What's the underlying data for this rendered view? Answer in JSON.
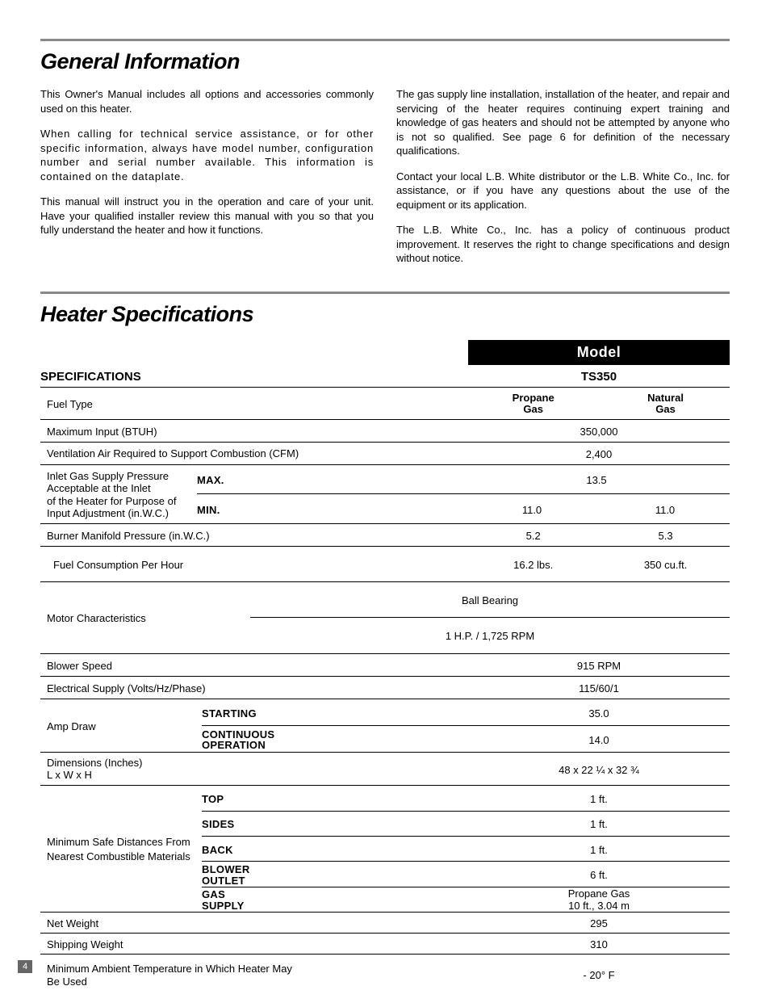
{
  "page_number": "4",
  "section1": {
    "title": "General Information",
    "left_paras": [
      "This Owner's Manual includes all options and accessories commonly used on this heater.",
      "When calling for technical service assistance, or for other specific information, always have model number, configuration number and serial number available.  This information is contained on the dataplate.",
      "This manual will instruct you in the operation and care of your unit. Have your qualified installer review this manual with you so that you fully understand the heater and how it functions."
    ],
    "right_paras": [
      "The gas supply line installation, installation of the heater, and repair and servicing of the heater requires continuing expert training and knowledge of gas heaters and should not be attempted by anyone who is not so qualified.  See page 6 for definition of the necessary qualifications.",
      "Contact your local L.B. White distributor or the L.B. White Co., Inc. for assistance, or if you have any questions about the use of the equipment or its application.",
      "The L.B. White Co., Inc. has a policy of continuous product improvement.  It reserves the right to change specifications and design without notice."
    ]
  },
  "section2": {
    "title": "Heater Specifications",
    "model_label": "Model",
    "specs_label": "Specifications",
    "model_name": "TS350",
    "fuel_headers": {
      "propane": "Propane Gas",
      "natural": "Natural Gas"
    },
    "rows": {
      "fuel_type": "Fuel Type",
      "max_input": {
        "label": "Maximum Input (BTUH)",
        "value": "350,000"
      },
      "vent": {
        "label": "Ventilation Air Required to Support Combustion (CFM)",
        "value": "2,400"
      },
      "inlet": {
        "label_l1": "Inlet Gas Supply Pressure",
        "label_l2": "Acceptable at the Inlet",
        "label_l3": "of the Heater for Purpose of",
        "label_l4": "Input Adjustment (in.W.C.)",
        "max_label": "Max.",
        "min_label": "Min.",
        "max_value": "13.5",
        "min_propane": "11.0",
        "min_natural": "11.0"
      },
      "manifold": {
        "label": "Burner Manifold Pressure (in.W.C.)",
        "propane": "5.2",
        "natural": "5.3"
      },
      "fuel_cons": {
        "label": "Fuel Consumption Per Hour",
        "propane": "16.2 lbs.",
        "natural": "350 cu.ft."
      },
      "motor": {
        "label": "Motor Characteristics",
        "v1": "Ball Bearing",
        "v2": "1 H.P. / 1,725 RPM"
      },
      "blower_speed": {
        "label": "Blower Speed",
        "value": "915 RPM"
      },
      "electrical": {
        "label": "Electrical Supply  (Volts/Hz/Phase)",
        "value": "115/60/1"
      },
      "amp": {
        "label": "Amp Draw",
        "start_label": "Starting",
        "start_val": "35.0",
        "cont_label": "Continuous Operation",
        "cont_val": "14.0"
      },
      "dims": {
        "label": "Dimensions (Inches)\nL x W x H",
        "value": "48  x  22 ¼  x  32 ¾"
      },
      "clearance": {
        "label": "Minimum Safe Distances From Nearest Combustible Materials",
        "top_l": "Top",
        "top_v": "1 ft.",
        "sides_l": "Sides",
        "sides_v": "1 ft.",
        "back_l": "Back",
        "back_v": "1 ft.",
        "blower_l": "Blower Outlet",
        "blower_v": "6 ft.",
        "gas_l": "Gas Supply",
        "gas_v1": "Propane Gas",
        "gas_v2": "10 ft., 3.04 m"
      },
      "net_wt": {
        "label": "Net Weight",
        "value": "295"
      },
      "ship_wt": {
        "label": "Shipping Weight",
        "value": "310"
      },
      "min_temp": {
        "label": "Minimum Ambient Temperature in Which Heater May Be Used",
        "value": "- 20° F"
      }
    }
  }
}
